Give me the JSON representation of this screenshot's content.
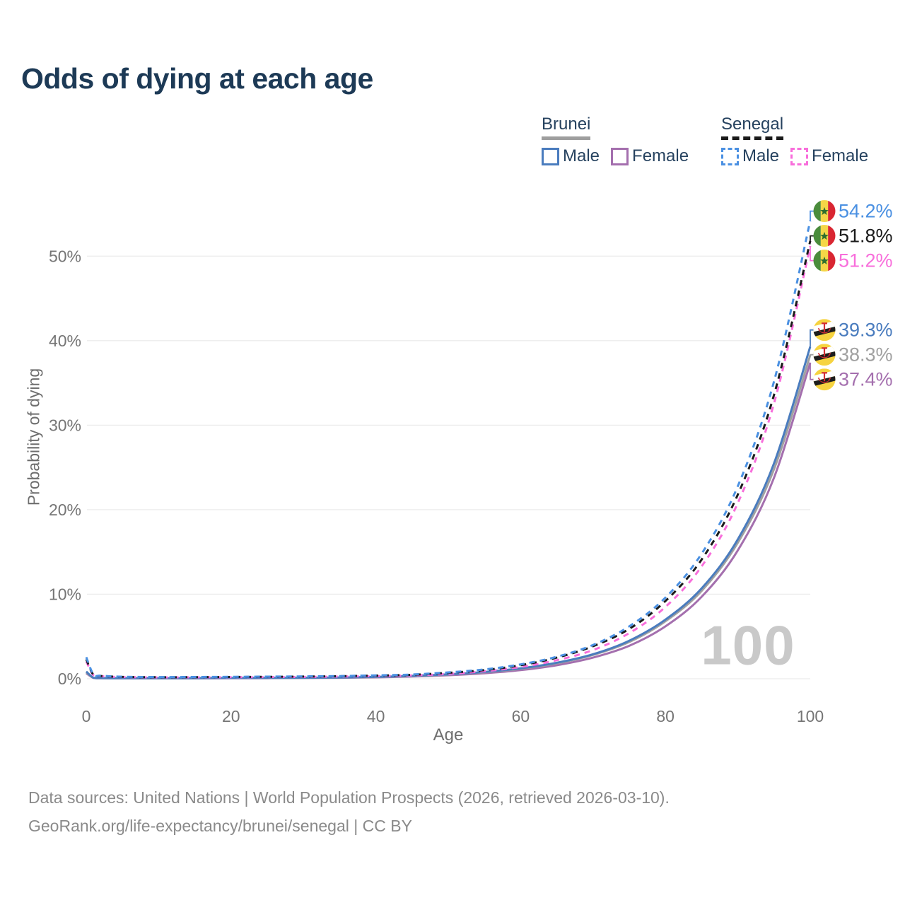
{
  "page": {
    "title": "Odds of dying at each age"
  },
  "legend": {
    "groups": [
      {
        "name": "Brunei",
        "line_style": "solid",
        "underline_color": "#9e9e9e",
        "items": [
          {
            "label": "Male",
            "color": "#4a7cbe"
          },
          {
            "label": "Female",
            "color": "#a46fae"
          }
        ]
      },
      {
        "name": "Senegal",
        "line_style": "dashed",
        "underline_color": "#1a1a1a",
        "items": [
          {
            "label": "Male",
            "color": "#4a90e2"
          },
          {
            "label": "Female",
            "color": "#f86edb"
          }
        ]
      }
    ]
  },
  "chart_data": {
    "type": "line",
    "title": "Odds of dying at each age",
    "xlabel": "Age",
    "ylabel": "Probability of dying",
    "xlim": [
      0,
      100
    ],
    "ylim": [
      0,
      56
    ],
    "xticks": [
      0,
      20,
      40,
      60,
      80,
      100
    ],
    "yticks": [
      0,
      10,
      20,
      30,
      40,
      50
    ],
    "ytick_suffix": "%",
    "grid": true,
    "legend_position": "top-right",
    "watermark": "100",
    "ages": [
      0,
      1,
      2,
      5,
      10,
      15,
      20,
      25,
      30,
      35,
      40,
      45,
      50,
      55,
      60,
      65,
      70,
      75,
      80,
      85,
      90,
      95,
      100
    ],
    "series": [
      {
        "key": "senegal-male",
        "name": "Senegal Male",
        "country": "Senegal",
        "sex": "Male",
        "style": "dashed",
        "color": "#4a90e2",
        "end_label": "54.2%",
        "values": [
          2.55,
          0.5,
          0.36,
          0.24,
          0.2,
          0.21,
          0.23,
          0.25,
          0.28,
          0.32,
          0.4,
          0.5,
          0.75,
          1.1,
          1.7,
          2.6,
          4.0,
          6.2,
          9.6,
          14.8,
          22.8,
          35.2,
          54.2
        ]
      },
      {
        "key": "senegal-both",
        "name": "Senegal Both sexes",
        "country": "Senegal",
        "sex": "Both sexes",
        "style": "dashed",
        "color": "#1a1a1a",
        "end_label": "51.8%",
        "values": [
          2.3,
          0.45,
          0.33,
          0.22,
          0.18,
          0.19,
          0.21,
          0.23,
          0.26,
          0.3,
          0.37,
          0.47,
          0.7,
          1.03,
          1.6,
          2.5,
          3.85,
          5.9,
          9.2,
          14.1,
          21.8,
          33.6,
          51.8
        ]
      },
      {
        "key": "senegal-female",
        "name": "Senegal Female",
        "country": "Senegal",
        "sex": "Female",
        "style": "dashed",
        "color": "#f86edb",
        "end_label": "51.2%",
        "values": [
          2.05,
          0.42,
          0.3,
          0.2,
          0.16,
          0.17,
          0.18,
          0.2,
          0.22,
          0.26,
          0.31,
          0.4,
          0.57,
          0.89,
          1.4,
          2.2,
          3.4,
          5.4,
          8.5,
          13.3,
          20.8,
          32.6,
          51.2
        ]
      },
      {
        "key": "brunei-male",
        "name": "Brunei Male",
        "country": "Brunei",
        "sex": "Male",
        "style": "solid",
        "color": "#4a7cbe",
        "end_label": "39.3%",
        "values": [
          0.85,
          0.12,
          0.08,
          0.06,
          0.06,
          0.07,
          0.09,
          0.1,
          0.12,
          0.15,
          0.22,
          0.34,
          0.52,
          0.8,
          1.23,
          1.9,
          2.9,
          4.5,
          7.0,
          10.7,
          16.5,
          25.5,
          39.3
        ]
      },
      {
        "key": "brunei-both",
        "name": "Brunei Both sexes",
        "country": "Brunei",
        "sex": "Both sexes",
        "style": "solid",
        "color": "#a0a0a0",
        "end_label": "38.3%",
        "values": [
          0.75,
          0.11,
          0.07,
          0.05,
          0.05,
          0.06,
          0.08,
          0.09,
          0.11,
          0.14,
          0.2,
          0.31,
          0.49,
          0.76,
          1.18,
          1.83,
          2.82,
          4.35,
          6.8,
          10.4,
          16.1,
          24.8,
          38.3
        ]
      },
      {
        "key": "brunei-female",
        "name": "Brunei Female",
        "country": "Brunei",
        "sex": "Female",
        "style": "solid",
        "color": "#a46fae",
        "end_label": "37.4%",
        "values": [
          0.65,
          0.1,
          0.06,
          0.04,
          0.04,
          0.05,
          0.06,
          0.07,
          0.09,
          0.12,
          0.17,
          0.26,
          0.42,
          0.65,
          1.02,
          1.6,
          2.5,
          3.9,
          6.2,
          9.7,
          15.2,
          23.8,
          37.4
        ]
      }
    ],
    "flag_colors": {
      "senegal": {
        "green": "#4a8c3c",
        "yellow": "#f5d647",
        "red": "#d92632",
        "star": "#2f6e2f"
      },
      "brunei": {
        "yellow": "#f6d340",
        "white": "#ffffff",
        "black": "#1d1d1d",
        "crest": "#d22d32"
      }
    },
    "axis_color": "#757575",
    "grid_color": "#ececec"
  },
  "footer": {
    "line1": "Data sources: United Nations | World Population Prospects (2026, retrieved 2026-03-10).",
    "line2": "GeoRank.org/life-expectancy/brunei/senegal | CC BY"
  }
}
